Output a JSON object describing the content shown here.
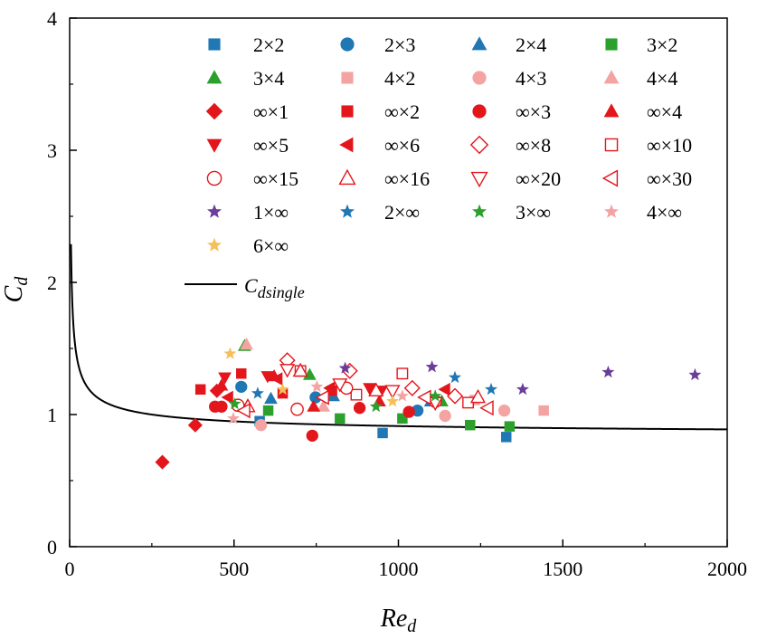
{
  "colors": {
    "blue": "#1f77b4",
    "green": "#2ca02c",
    "pink": "#f4a3a3",
    "red": "#e3161c",
    "purple": "#6a3d9a",
    "orange": "#f5bf5a",
    "axis": "#000000"
  },
  "chart_data": {
    "type": "scatter",
    "title": "",
    "xlabel": "Re_d",
    "ylabel": "C_d",
    "xlabel_main": "Re",
    "xlabel_sub": "d",
    "ylabel_main": "C",
    "ylabel_sub": "d",
    "xlim": [
      0,
      2000
    ],
    "ylim": [
      0,
      4
    ],
    "xticks": [
      "0",
      "500",
      "1000",
      "1500",
      "2000"
    ],
    "xtick_values": [
      0,
      500,
      1000,
      1500,
      2000
    ],
    "yticks": [
      "0",
      "1",
      "2",
      "3",
      "4"
    ],
    "ytick_values": [
      0,
      1,
      2,
      3,
      4
    ],
    "grid": false,
    "legend_position": "top-right, inside plot",
    "series": [
      {
        "name": "2×2",
        "marker": "square",
        "color": "#1f77b4",
        "filled": true,
        "x": [
          578,
          952,
          1328
        ],
        "y": [
          0.95,
          0.86,
          0.83
        ]
      },
      {
        "name": "2×3",
        "marker": "circle",
        "color": "#1f77b4",
        "filled": true,
        "x": [
          522,
          748,
          1058
        ],
        "y": [
          1.21,
          1.13,
          1.03
        ]
      },
      {
        "name": "2×4",
        "marker": "triangle-up",
        "color": "#1f77b4",
        "filled": true,
        "x": [
          612,
          802,
          1098
        ],
        "y": [
          1.12,
          1.14,
          1.1
        ]
      },
      {
        "name": "3×2",
        "marker": "square",
        "color": "#2ca02c",
        "filled": true,
        "x": [
          604,
          822,
          1012,
          1218,
          1338
        ],
        "y": [
          1.03,
          0.97,
          0.97,
          0.92,
          0.91
        ]
      },
      {
        "name": "3×4",
        "marker": "triangle-up",
        "color": "#2ca02c",
        "filled": true,
        "x": [
          532,
          730,
          1132
        ],
        "y": [
          1.52,
          1.3,
          1.1
        ]
      },
      {
        "name": "4×2",
        "marker": "square",
        "color": "#f4a3a3",
        "filled": true,
        "x": [
          1232,
          1442
        ],
        "y": [
          1.11,
          1.03
        ]
      },
      {
        "name": "4×3",
        "marker": "circle",
        "color": "#f4a3a3",
        "filled": true,
        "x": [
          582,
          1142,
          1322
        ],
        "y": [
          0.92,
          0.99,
          1.03
        ]
      },
      {
        "name": "4×4",
        "marker": "triangle-up",
        "color": "#f4a3a3",
        "filled": true,
        "x": [
          538,
          772
        ],
        "y": [
          1.53,
          1.06
        ]
      },
      {
        "name": "∞×1",
        "marker": "diamond",
        "color": "#e3161c",
        "filled": true,
        "x": [
          282,
          382,
          448
        ],
        "y": [
          0.64,
          0.92,
          1.18
        ]
      },
      {
        "name": "∞×2",
        "marker": "square",
        "color": "#e3161c",
        "filled": true,
        "x": [
          398,
          522,
          648,
          798
        ],
        "y": [
          1.19,
          1.31,
          1.16,
          1.18
        ]
      },
      {
        "name": "∞×3",
        "marker": "circle",
        "color": "#e3161c",
        "filled": true,
        "x": [
          442,
          462,
          738,
          882,
          1032
        ],
        "y": [
          1.06,
          1.06,
          0.84,
          1.05,
          1.02
        ]
      },
      {
        "name": "∞×4",
        "marker": "triangle-up",
        "color": "#e3161c",
        "filled": true,
        "x": [
          462,
          622,
          742,
          942
        ],
        "y": [
          1.22,
          1.29,
          1.06,
          1.1
        ]
      },
      {
        "name": "∞×5",
        "marker": "triangle-down",
        "color": "#e3161c",
        "filled": true,
        "x": [
          472,
          602,
          912,
          948
        ],
        "y": [
          1.28,
          1.29,
          1.2,
          1.18
        ]
      },
      {
        "name": "∞×6",
        "marker": "triangle-left",
        "color": "#e3161c",
        "filled": true,
        "x": [
          482,
          632,
          792,
          1142
        ],
        "y": [
          1.13,
          1.27,
          1.2,
          1.19
        ]
      },
      {
        "name": "∞×8",
        "marker": "diamond",
        "color": "#e3161c",
        "filled": false,
        "x": [
          662,
          852,
          1042,
          1172
        ],
        "y": [
          1.41,
          1.33,
          1.2,
          1.14
        ]
      },
      {
        "name": "∞×10",
        "marker": "square",
        "color": "#e3161c",
        "filled": false,
        "x": [
          702,
          872,
          1012,
          1212
        ],
        "y": [
          1.33,
          1.15,
          1.31,
          1.09
        ]
      },
      {
        "name": "∞×15",
        "marker": "circle",
        "color": "#e3161c",
        "filled": false,
        "x": [
          512,
          692,
          842,
          1112
        ],
        "y": [
          1.07,
          1.04,
          1.2,
          1.1
        ]
      },
      {
        "name": "∞×16",
        "marker": "triangle-up",
        "color": "#e3161c",
        "filled": false,
        "x": [
          542,
          702,
          932,
          1242
        ],
        "y": [
          1.06,
          1.33,
          1.18,
          1.13
        ]
      },
      {
        "name": "∞×20",
        "marker": "triangle-down",
        "color": "#e3161c",
        "filled": false,
        "x": [
          662,
          822,
          982,
          1112
        ],
        "y": [
          1.34,
          1.23,
          1.18,
          1.09
        ]
      },
      {
        "name": "∞×30",
        "marker": "triangle-left",
        "color": "#e3161c",
        "filled": false,
        "x": [
          532,
          772,
          1082,
          1272
        ],
        "y": [
          1.03,
          1.13,
          1.13,
          1.05
        ]
      },
      {
        "name": "1×∞",
        "marker": "star",
        "color": "#6a3d9a",
        "filled": true,
        "x": [
          838,
          1102,
          1378,
          1638,
          1902
        ],
        "y": [
          1.35,
          1.36,
          1.19,
          1.32,
          1.3
        ]
      },
      {
        "name": "2×∞",
        "marker": "star",
        "color": "#1f77b4",
        "filled": true,
        "x": [
          572,
          1172,
          1282
        ],
        "y": [
          1.16,
          1.28,
          1.19
        ]
      },
      {
        "name": "3×∞",
        "marker": "star",
        "color": "#2ca02c",
        "filled": true,
        "x": [
          502,
          932,
          1112
        ],
        "y": [
          1.08,
          1.06,
          1.14
        ]
      },
      {
        "name": "4×∞",
        "marker": "star",
        "color": "#f4a3a3",
        "filled": true,
        "x": [
          498,
          752,
          1012
        ],
        "y": [
          0.97,
          1.21,
          1.14
        ]
      },
      {
        "name": "6×∞",
        "marker": "star",
        "color": "#f5bf5a",
        "filled": true,
        "x": [
          488,
          648,
          982
        ],
        "y": [
          1.46,
          1.19,
          1.1
        ]
      }
    ],
    "curve": {
      "name": "C_dsingle",
      "label_main": "C",
      "label_sub": "dsingle",
      "color": "#000000"
    }
  }
}
